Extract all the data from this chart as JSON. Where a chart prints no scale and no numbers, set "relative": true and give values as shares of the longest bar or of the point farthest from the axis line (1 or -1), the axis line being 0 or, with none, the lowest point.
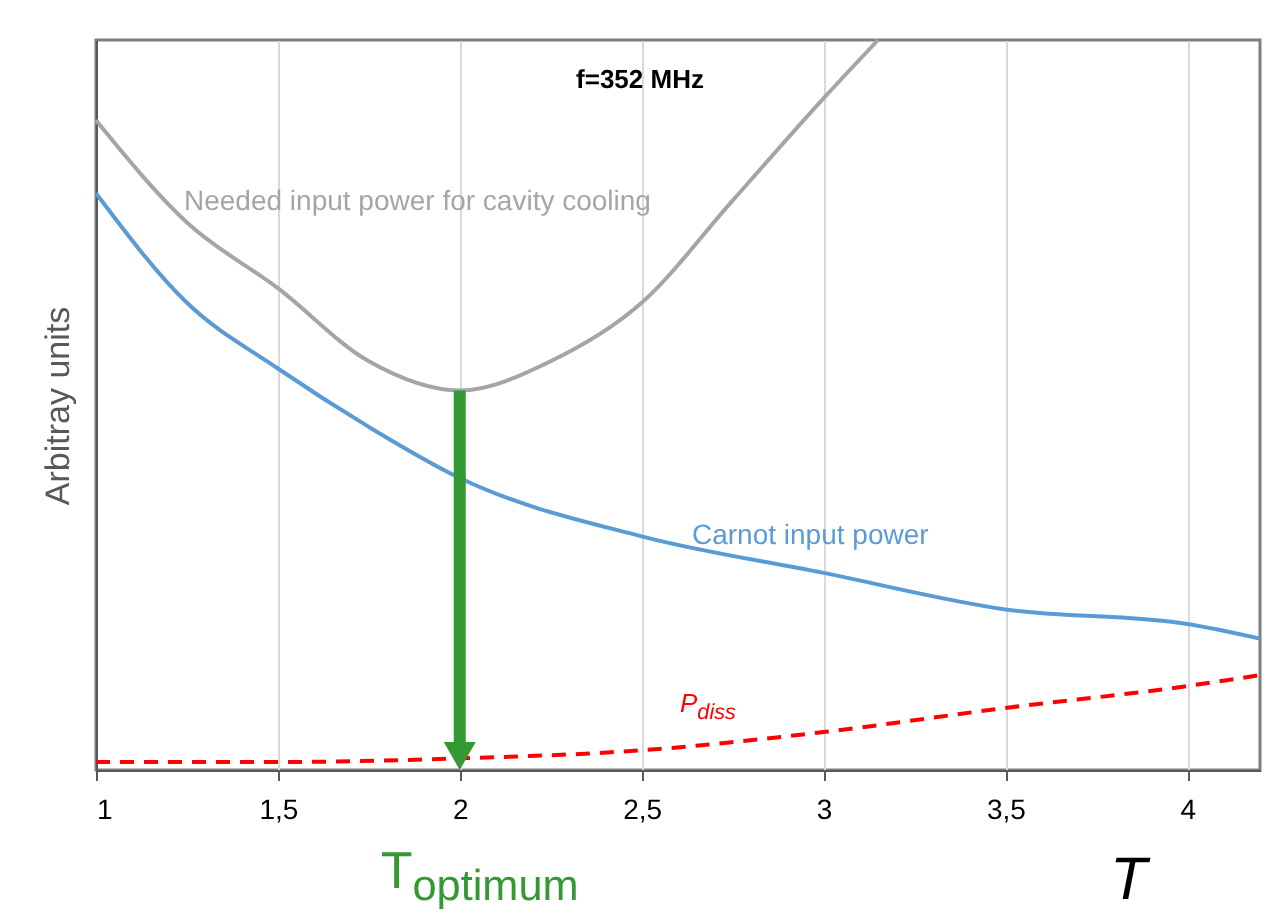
{
  "chart_data": {
    "type": "line",
    "title": "f=352 MHz",
    "xlabel": "T",
    "ylabel": "Arbitray units",
    "relative": true,
    "xlim": [
      1,
      4.2
    ],
    "xticks": [
      1,
      {
        "value": 1.5,
        "label": "1,5"
      },
      2,
      {
        "value": 2.5,
        "label": "2,5"
      },
      3,
      {
        "value": 3.5,
        "label": "3,5"
      },
      4
    ],
    "grid": "x",
    "legend": false,
    "annotations": [
      {
        "text": "T$_{optimum}$",
        "x": 2,
        "y": 0
      }
    ],
    "series": [
      {
        "name": "Needed input power for cavity cooling",
        "color": "#a5a5a5",
        "x": [
          1,
          1.25,
          1.5,
          1.75,
          2,
          2.25,
          2.5,
          2.75,
          3,
          3.15
        ],
        "values": [
          0.89,
          0.75,
          0.66,
          0.56,
          0.52,
          0.56,
          0.64,
          0.78,
          0.92,
          1.0
        ]
      },
      {
        "name": "Carnot input power",
        "color": "#5b9bd5",
        "x": [
          1,
          1.25,
          1.5,
          1.75,
          2,
          2.5,
          3,
          3.5,
          4,
          4.2
        ],
        "values": [
          0.79,
          0.64,
          0.55,
          0.47,
          0.4,
          0.32,
          0.27,
          0.22,
          0.2,
          0.18
        ]
      },
      {
        "name": "P$_{diss}$",
        "color": "#ff0000",
        "line_style": "dashed",
        "x": [
          1,
          1.5,
          2,
          2.5,
          3,
          3.5,
          4,
          4.2
        ],
        "values": [
          0.011,
          0.011,
          0.016,
          0.027,
          0.052,
          0.085,
          0.115,
          0.13
        ]
      }
    ]
  }
}
